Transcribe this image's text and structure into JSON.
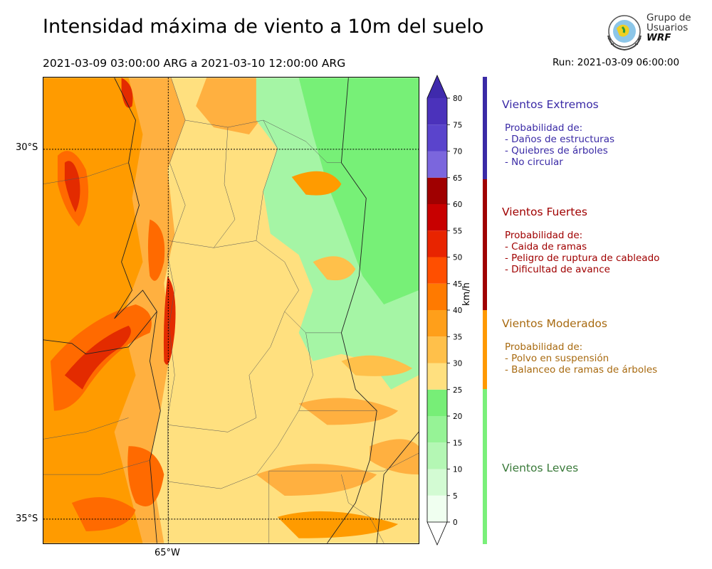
{
  "title": "Intensidad máxima de viento a 10m del suelo",
  "period": "2021-03-09 03:00:00 ARG  a  2021-03-10 12:00:00 ARG",
  "run": "Run: 2021-03-09 06:00:00",
  "logo": {
    "line1": "Grupo de",
    "line2": "Usuarios",
    "line3": "WRF"
  },
  "map": {
    "lat_labels": [
      "30°S",
      "35°S"
    ],
    "lon_labels": [
      "65°W"
    ],
    "field_colors": {
      "green": "#77f077",
      "light_green": "#a5f5a5",
      "yellow": "#ffe07f",
      "light_orange": "#ffc04a",
      "orange": "#ff9b00",
      "red_orange": "#ff6a00",
      "red": "#e32b00",
      "dark_red": "#b80000"
    }
  },
  "colorbar": {
    "unit": "km/h",
    "ticks": [
      "0",
      "5",
      "10",
      "15",
      "20",
      "25",
      "30",
      "35",
      "40",
      "45",
      "50",
      "55",
      "60",
      "65",
      "70",
      "75",
      "80"
    ],
    "bins": [
      {
        "from": 0,
        "to": 5,
        "color": "#f0fff0"
      },
      {
        "from": 5,
        "to": 10,
        "color": "#d3fbd3"
      },
      {
        "from": 10,
        "to": 15,
        "color": "#b4f7b4"
      },
      {
        "from": 15,
        "to": 20,
        "color": "#96f396"
      },
      {
        "from": 20,
        "to": 25,
        "color": "#77ee77"
      },
      {
        "from": 25,
        "to": 30,
        "color": "#ffe07f"
      },
      {
        "from": 30,
        "to": 35,
        "color": "#ffc04a"
      },
      {
        "from": 35,
        "to": 40,
        "color": "#ff9f1a"
      },
      {
        "from": 40,
        "to": 45,
        "color": "#ff7a00"
      },
      {
        "from": 45,
        "to": 50,
        "color": "#ff4f00"
      },
      {
        "from": 50,
        "to": 55,
        "color": "#e82400"
      },
      {
        "from": 55,
        "to": 60,
        "color": "#c80000"
      },
      {
        "from": 60,
        "to": 65,
        "color": "#a00000"
      },
      {
        "from": 65,
        "to": 70,
        "color": "#7b66dd"
      },
      {
        "from": 70,
        "to": 75,
        "color": "#5a44cc"
      },
      {
        "from": 75,
        "to": 80,
        "color": "#4b32bb"
      }
    ],
    "extend_color": "#3f2aac"
  },
  "legend": {
    "extremos": {
      "title": "Vientos Extremos",
      "color": "#3a2aa6",
      "lines": [
        "Probabilidad de:",
        "- Daños de estructuras",
        "- Quiebres de árboles",
        "- No circular"
      ]
    },
    "fuertes": {
      "title": "Vientos Fuertes",
      "color": "#a00000",
      "lines": [
        "Probabilidad de:",
        "- Caida de ramas",
        "- Peligro de ruptura de cableado",
        "- Dificultad de avance"
      ]
    },
    "moderados": {
      "title": "Vientos Moderados",
      "color": "#a86a10",
      "bar_color": "#ff9900",
      "lines": [
        "Probabilidad de:",
        "- Polvo en suspensión",
        "- Balanceo de ramas de árboles"
      ]
    },
    "leves": {
      "title": "Vientos Leves",
      "color": "#3a7a3a",
      "bar_color": "#7af07a"
    }
  }
}
